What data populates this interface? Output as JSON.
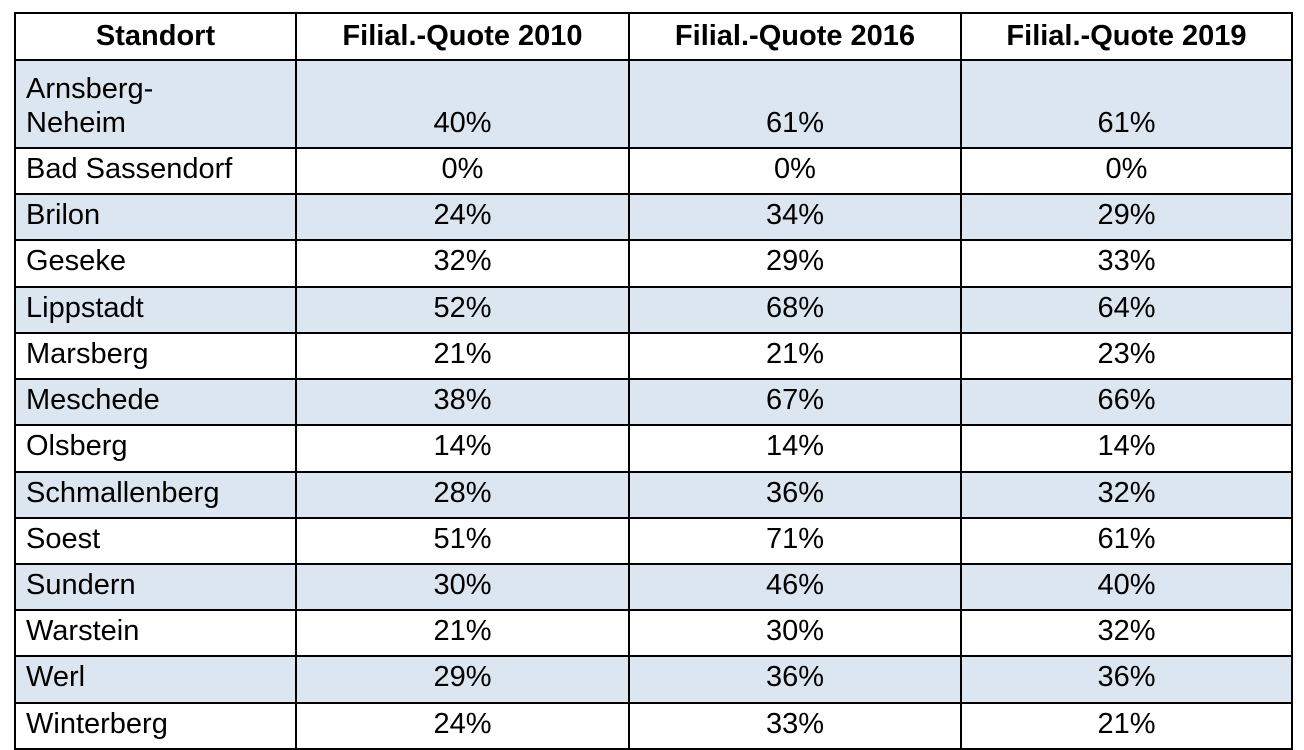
{
  "table": {
    "columns": [
      "Standort",
      "Filial.-Quote 2010",
      "Filial.-Quote 2016",
      "Filial.-Quote 2019"
    ],
    "rows": [
      {
        "standort": "Arnsberg-\nNeheim",
        "q2010": "40%",
        "q2016": "61%",
        "q2019": "61%"
      },
      {
        "standort": "Bad Sassendorf",
        "q2010": "0%",
        "q2016": "0%",
        "q2019": "0%"
      },
      {
        "standort": "Brilon",
        "q2010": "24%",
        "q2016": "34%",
        "q2019": "29%"
      },
      {
        "standort": "Geseke",
        "q2010": "32%",
        "q2016": "29%",
        "q2019": "33%"
      },
      {
        "standort": "Lippstadt",
        "q2010": "52%",
        "q2016": "68%",
        "q2019": "64%"
      },
      {
        "standort": "Marsberg",
        "q2010": "21%",
        "q2016": "21%",
        "q2019": "23%"
      },
      {
        "standort": "Meschede",
        "q2010": "38%",
        "q2016": "67%",
        "q2019": "66%"
      },
      {
        "standort": "Olsberg",
        "q2010": "14%",
        "q2016": "14%",
        "q2019": "14%"
      },
      {
        "standort": "Schmallenberg",
        "q2010": "28%",
        "q2016": "36%",
        "q2019": "32%"
      },
      {
        "standort": "Soest",
        "q2010": "51%",
        "q2016": "71%",
        "q2019": "61%"
      },
      {
        "standort": "Sundern",
        "q2010": "30%",
        "q2016": "46%",
        "q2019": "40%"
      },
      {
        "standort": "Warstein",
        "q2010": "21%",
        "q2016": "30%",
        "q2019": "32%"
      },
      {
        "standort": "Werl",
        "q2010": "29%",
        "q2016": "36%",
        "q2019": "36%"
      },
      {
        "standort": "Winterberg",
        "q2010": "24%",
        "q2016": "33%",
        "q2019": "21%"
      }
    ]
  },
  "chart_data": {
    "type": "table",
    "title": "",
    "categories": [
      "Arnsberg-Neheim",
      "Bad Sassendorf",
      "Brilon",
      "Geseke",
      "Lippstadt",
      "Marsberg",
      "Meschede",
      "Olsberg",
      "Schmallenberg",
      "Soest",
      "Sundern",
      "Warstein",
      "Werl",
      "Winterberg"
    ],
    "series": [
      {
        "name": "Filial.-Quote 2010",
        "values": [
          40,
          0,
          24,
          32,
          52,
          21,
          38,
          14,
          28,
          51,
          30,
          21,
          29,
          24
        ]
      },
      {
        "name": "Filial.-Quote 2016",
        "values": [
          61,
          0,
          34,
          29,
          68,
          21,
          67,
          14,
          36,
          71,
          46,
          30,
          36,
          33
        ]
      },
      {
        "name": "Filial.-Quote 2019",
        "values": [
          61,
          0,
          29,
          33,
          64,
          23,
          66,
          14,
          32,
          61,
          40,
          32,
          36,
          21
        ]
      }
    ],
    "unit": "%"
  },
  "colors": {
    "row_stripe": "#dce6f1",
    "row_plain": "#ffffff",
    "border": "#000000",
    "text": "#000000"
  }
}
